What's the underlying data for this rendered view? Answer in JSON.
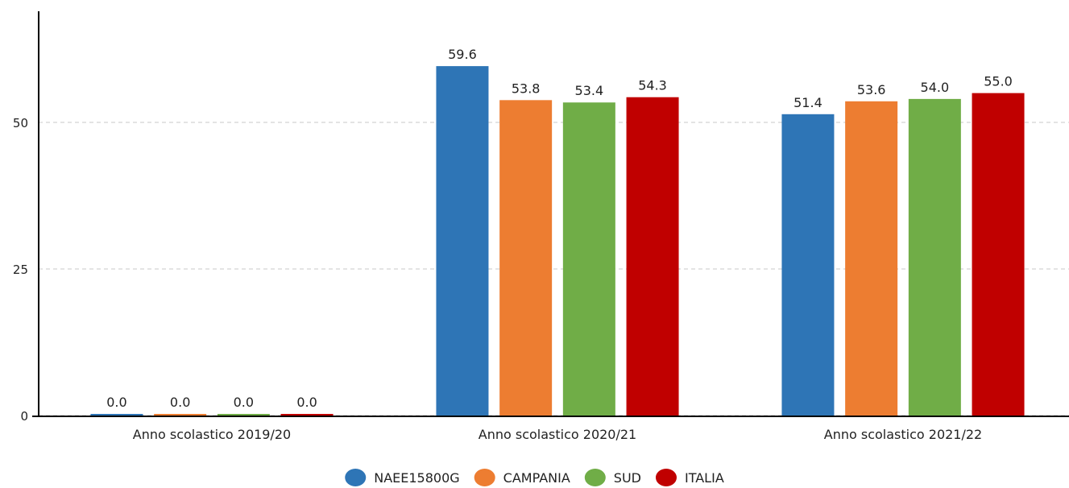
{
  "chart_data": {
    "type": "bar",
    "categories": [
      "Anno scolastico 2019/20",
      "Anno scolastico 2020/21",
      "Anno scolastico 2021/22"
    ],
    "series": [
      {
        "name": "NAEE15800G",
        "color": "#2e75b6",
        "values": [
          0.0,
          59.6,
          51.4
        ],
        "labels": [
          "0.0",
          "59.6",
          "51.4"
        ]
      },
      {
        "name": "CAMPANIA",
        "color": "#ed7d31",
        "values": [
          0.0,
          53.8,
          53.6
        ],
        "labels": [
          "0.0",
          "53.8",
          "53.6"
        ]
      },
      {
        "name": "SUD",
        "color": "#70ad47",
        "values": [
          0.0,
          53.4,
          54.0
        ],
        "labels": [
          "0.0",
          "53.4",
          "54.0"
        ]
      },
      {
        "name": "ITALIA",
        "color": "#c00000",
        "values": [
          0.0,
          54.3,
          55.0
        ],
        "labels": [
          "0.0",
          "54.3",
          "55.0"
        ]
      }
    ],
    "yticks": [
      0,
      25,
      50
    ],
    "ytick_labels": [
      "0",
      "25",
      "50"
    ],
    "ylim": [
      0,
      68
    ],
    "grid": "horizontal dashed",
    "legend": "bottom-center",
    "title": "",
    "xlabel": "",
    "ylabel": ""
  }
}
